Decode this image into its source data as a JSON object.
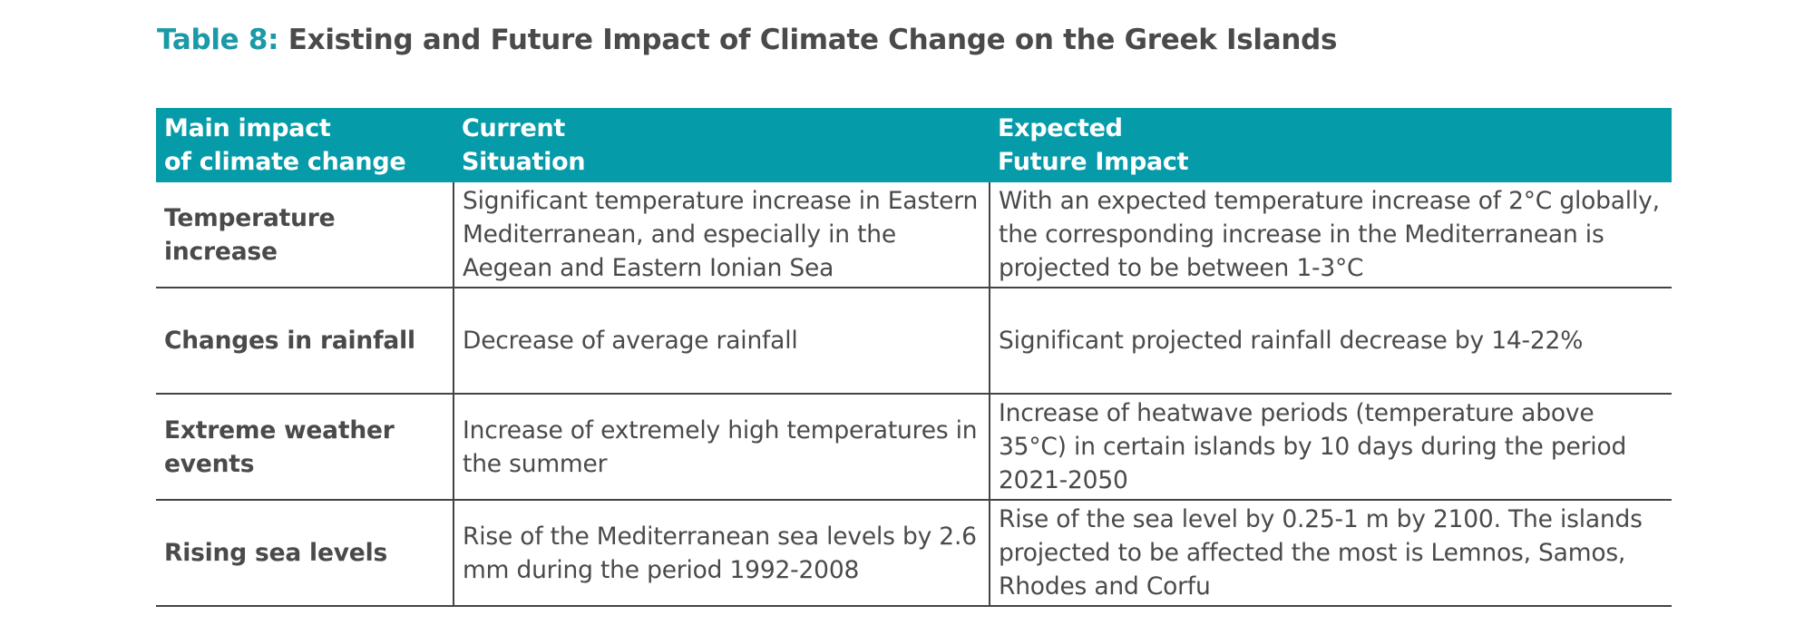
{
  "caption": {
    "number": "Table 8:",
    "title": "Existing and Future Impact of Climate Change on the Greek Islands"
  },
  "table": {
    "headers": [
      [
        "Main impact",
        "of climate change"
      ],
      [
        "Current",
        "Situation"
      ],
      [
        "Expected",
        "Future Impact"
      ]
    ],
    "rows": [
      {
        "impact": "Temperature increase",
        "current": "Significant temperature increase in Eastern Mediterranean, and especially in the Aegean and Eastern Ionian Sea",
        "future": "With an expected temperature increase of 2°C globally, the corresponding increase in the Mediterranean is projected to be between 1-3°C"
      },
      {
        "impact": "Changes in rainfall",
        "current": "Decrease of average rainfall",
        "future": "Significant projected rainfall decrease by 14-22%"
      },
      {
        "impact": "Extreme weather events",
        "current": "Increase of extremely high temperatures in the summer",
        "future": "Increase of heatwave periods (temperature above 35°C) in certain islands by 10 days during the period 2021-2050"
      },
      {
        "impact": "Rising sea levels",
        "current": "Rise of the Mediterranean sea levels by 2.6 mm during the period 1992-2008",
        "future": "Rise of the sea level by 0.25-1 m by 2100. The islands projected to be affected the most is Lemnos, Samos, Rhodes and Corfu"
      }
    ]
  },
  "colors": {
    "accent": "#069ba9",
    "caption_number": "#1a9aa6",
    "text": "#4a4a4a",
    "rule": "#444444"
  }
}
